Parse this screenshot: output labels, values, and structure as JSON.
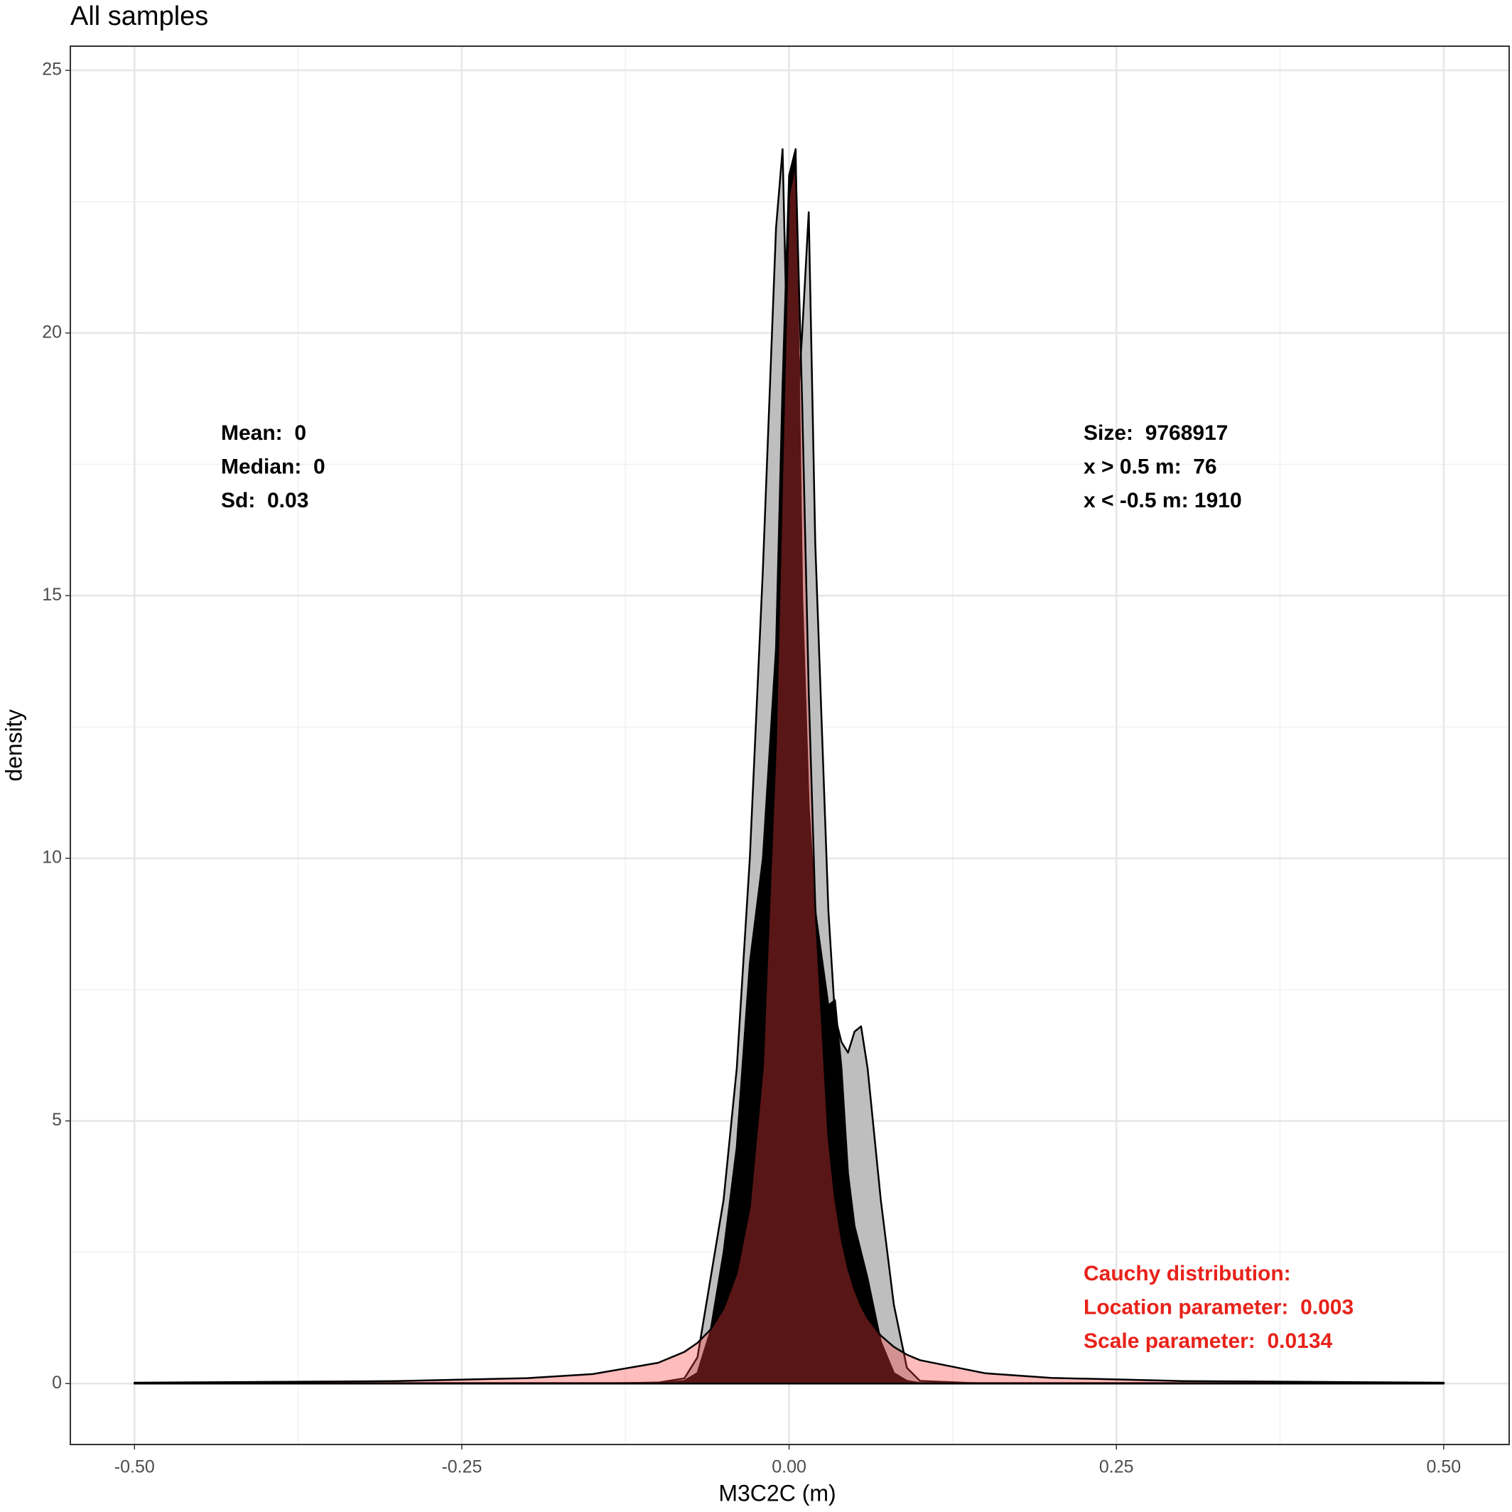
{
  "chart_data": {
    "type": "area",
    "title": "All samples",
    "x_label": "M3C2C (m)",
    "y_label": "density",
    "xlim": [
      -0.549,
      0.55
    ],
    "ylim": [
      -1.16,
      25.46
    ],
    "xticks": [
      {
        "value": -0.5,
        "label": "-0.50"
      },
      -0.25,
      {
        "value": 0,
        "label": "0.00"
      },
      0.25,
      {
        "value": 0.5,
        "label": "0.50"
      }
    ],
    "yticks": [
      0,
      5,
      10,
      15,
      20,
      25
    ],
    "grid": true,
    "minor_grid": true,
    "x": [
      -0.5,
      -0.3,
      -0.2,
      -0.15,
      -0.1,
      -0.08,
      -0.07,
      -0.06,
      -0.05,
      -0.04,
      -0.03,
      -0.02,
      -0.01,
      -0.005,
      0,
      0.005,
      0.01,
      0.015,
      0.02,
      0.03,
      0.035,
      0.04,
      0.045,
      0.05,
      0.055,
      0.06,
      0.07,
      0.08,
      0.09,
      0.1,
      0.15,
      0.2,
      0.3,
      0.5
    ],
    "series": [
      {
        "color": "#bebebe",
        "values": [
          0,
          0,
          0,
          0,
          0.02,
          0.1,
          0.5,
          2.0,
          3.5,
          6,
          10,
          15.5,
          22,
          23.5,
          18,
          18,
          20,
          22.3,
          16,
          9,
          7,
          6.5,
          6.3,
          6.7,
          6.8,
          6,
          3.5,
          1.5,
          0.3,
          0.05,
          0,
          0,
          0,
          0
        ]
      },
      {
        "color": "#000000",
        "values": [
          0.01,
          0.01,
          0.01,
          0.01,
          0.01,
          0.05,
          0.2,
          1,
          2.5,
          4.5,
          8,
          10,
          14,
          19,
          23,
          23.5,
          15,
          11,
          9,
          7.2,
          7.3,
          6,
          4,
          3,
          2.5,
          2.0,
          0.8,
          0.2,
          0.05,
          0.01,
          0.01,
          0.01,
          0.01,
          0.01
        ]
      },
      {
        "color": "#ff4040",
        "values": [
          0.017,
          0.046,
          0.103,
          0.181,
          0.395,
          0.603,
          0.774,
          1.028,
          1.427,
          2.102,
          3.36,
          6.02,
          12.24,
          17.51,
          22.62,
          23.23,
          18.66,
          13.18,
          9.1,
          4.69,
          3.54,
          2.755,
          2.195,
          1.786,
          1.479,
          1.243,
          0.913,
          0.698,
          0.55,
          0.445,
          0.196,
          0.109,
          0.048,
          0.017
        ]
      }
    ],
    "annotations_left": [
      "Mean:  0",
      "Median:  0",
      "Sd:  0.03"
    ],
    "annotations_right": [
      "Size:  9768917",
      "x > 0.5 m:  76",
      "x < -0.5 m: 1910"
    ],
    "annotations_fit": [
      "Cauchy distribution:",
      "Location parameter:  0.003",
      "Scale parameter:  0.0134"
    ],
    "fit_color": "#e8221a"
  }
}
